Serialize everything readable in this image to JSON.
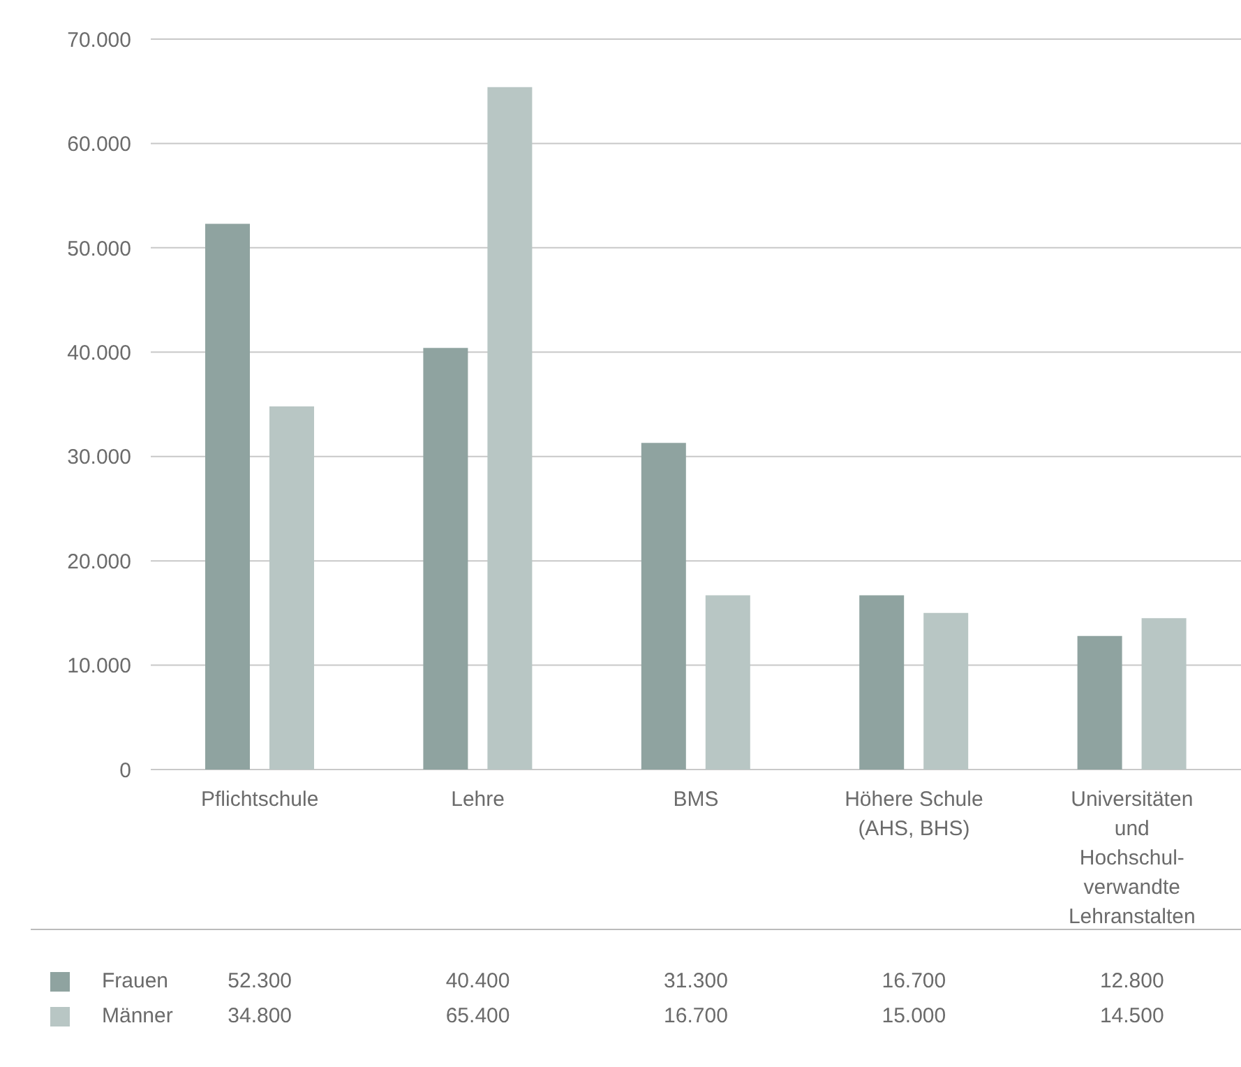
{
  "chart_data": {
    "type": "bar",
    "categories": [
      "Pflichtschule",
      "Lehre",
      "BMS",
      "Höhere Schule\n(AHS, BHS)",
      "Universitäten\nund\nHochschul-\nverwandte\nLehranstalten"
    ],
    "series": [
      {
        "name": "Frauen",
        "color": "#8fa3a0",
        "values": [
          52300,
          40400,
          31300,
          16700,
          12800
        ],
        "value_labels": [
          "52.300",
          "40.400",
          "31.300",
          "16.700",
          "12.800"
        ]
      },
      {
        "name": "Männer",
        "color": "#b8c6c4",
        "values": [
          34800,
          65400,
          16700,
          15000,
          14500
        ],
        "value_labels": [
          "34.800",
          "65.400",
          "16.700",
          "15.000",
          "14.500"
        ]
      }
    ],
    "ylim": [
      0,
      70000
    ],
    "yticks": [
      {
        "value": 0,
        "label": "0"
      },
      {
        "value": 10000,
        "label": "10.000"
      },
      {
        "value": 20000,
        "label": "20.000"
      },
      {
        "value": 30000,
        "label": "30.000"
      },
      {
        "value": 40000,
        "label": "40.000"
      },
      {
        "value": 50000,
        "label": "50.000"
      },
      {
        "value": 60000,
        "label": "60.000"
      },
      {
        "value": 70000,
        "label": "70.000"
      }
    ],
    "grid": "y",
    "legend": "bottom"
  }
}
